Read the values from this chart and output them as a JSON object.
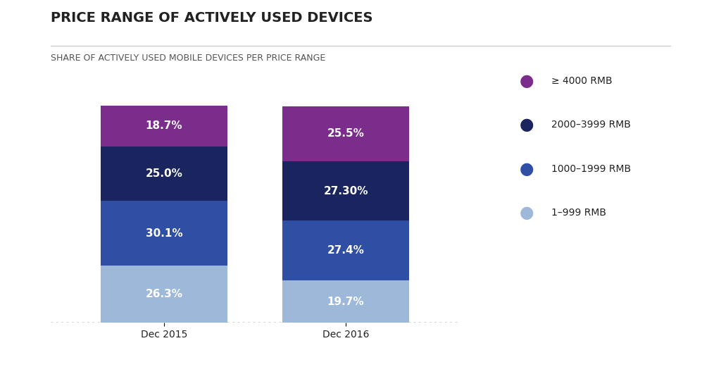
{
  "title": "PRICE RANGE OF ACTIVELY USED DEVICES",
  "subtitle": "SHARE OF ACTIVELY USED MOBILE DEVICES PER PRICE RANGE",
  "categories": [
    "Dec 2015",
    "Dec 2016"
  ],
  "segments": [
    {
      "label": "≥ 4000 RMB",
      "color": "#7b2d8b",
      "values": [
        18.7,
        25.5
      ]
    },
    {
      "label": "2000–3999 RMB",
      "color": "#1a2560",
      "values": [
        25.0,
        27.3
      ]
    },
    {
      "label": "1000–1999 RMB",
      "color": "#2e4fa3",
      "values": [
        30.1,
        27.4
      ]
    },
    {
      "label": "1–999 RMB",
      "color": "#9db8d8",
      "values": [
        26.3,
        19.7
      ]
    }
  ],
  "bar_labels": [
    [
      "18.7%",
      "25.5%"
    ],
    [
      "25.0%",
      "27.30%"
    ],
    [
      "30.1%",
      "27.4%"
    ],
    [
      "26.3%",
      "19.7%"
    ]
  ],
  "bar_width": 0.28,
  "bar_positions": [
    0.25,
    0.65
  ],
  "background_color": "#ffffff",
  "title_fontsize": 14,
  "subtitle_fontsize": 9,
  "label_fontsize": 11,
  "tick_fontsize": 10,
  "legend_fontsize": 10,
  "text_color_dark": "#222222",
  "text_color_bar": "#ffffff",
  "dotted_line_color": "#cccccc"
}
